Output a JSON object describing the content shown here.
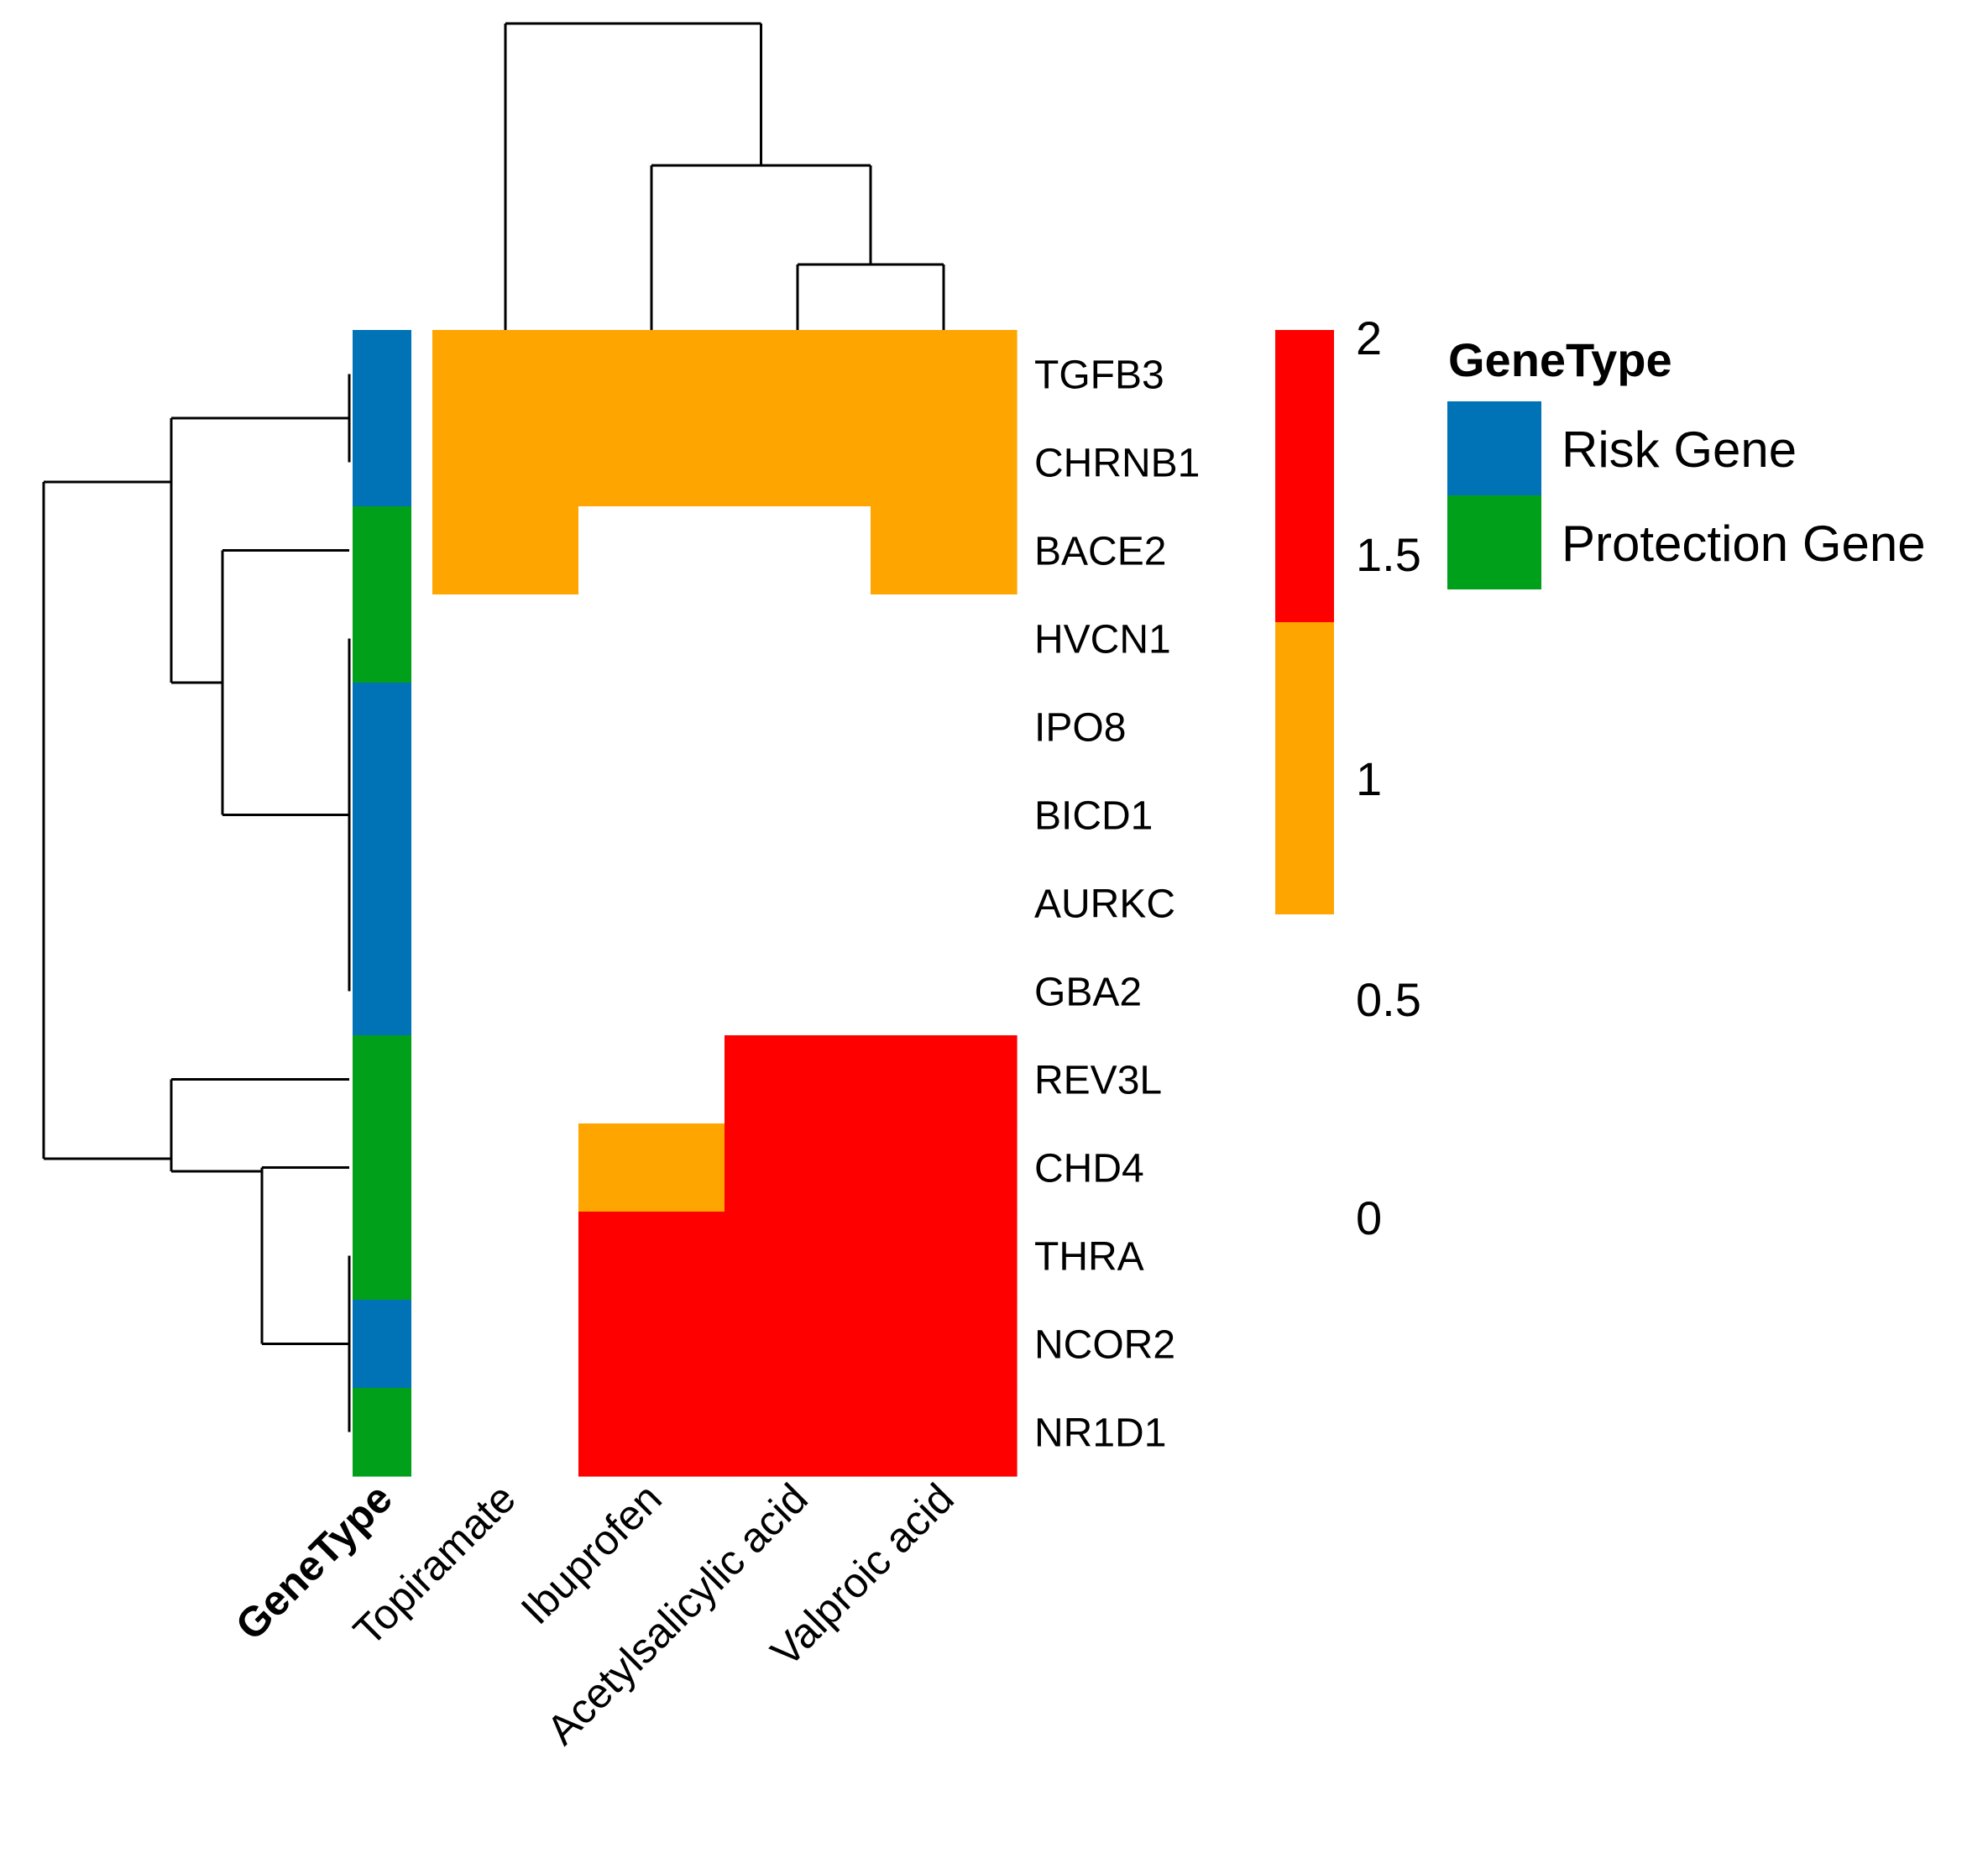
{
  "chart_data": {
    "type": "heatmap",
    "rows": [
      "TGFB3",
      "CHRNB1",
      "BACE2",
      "HVCN1",
      "IPO8",
      "BICD1",
      "AURKC",
      "GBA2",
      "REV3L",
      "CHD4",
      "THRA",
      "NCOR2",
      "NR1D1"
    ],
    "columns": [
      "Topiramate",
      "Ibuprofen",
      "Acetylsalicylic acid",
      "Valproic acid"
    ],
    "values": [
      [
        1,
        1,
        1,
        1
      ],
      [
        1,
        1,
        1,
        1
      ],
      [
        1,
        0,
        0,
        1
      ],
      [
        0,
        0,
        0,
        0
      ],
      [
        0,
        0,
        0,
        0
      ],
      [
        0,
        0,
        0,
        0
      ],
      [
        0,
        0,
        0,
        0
      ],
      [
        0,
        0,
        0,
        0
      ],
      [
        0,
        0,
        2,
        2
      ],
      [
        0,
        1,
        2,
        2
      ],
      [
        0,
        2,
        2,
        2
      ],
      [
        0,
        2,
        2,
        2
      ],
      [
        0,
        2,
        2,
        2
      ]
    ],
    "gene_type": [
      "Risk Gene",
      "Risk Gene",
      "Protection Gene",
      "Protection Gene",
      "Risk Gene",
      "Risk Gene",
      "Risk Gene",
      "Risk Gene",
      "Protection Gene",
      "Protection Gene",
      "Protection Gene",
      "Risk Gene",
      "Protection Gene"
    ],
    "annotation_title": "GeneType",
    "color_scale": {
      "ticks": [
        "2",
        "1.5",
        "1",
        "0.5",
        "0"
      ],
      "colors": {
        "0": "#ffffff",
        "1": "#ffa500",
        "2": "#ff0000"
      }
    },
    "legend": {
      "title": "GeneType",
      "items": [
        {
          "label": "Risk Gene",
          "color": "#0073b7"
        },
        {
          "label": "Protection Gene",
          "color": "#00a01a"
        }
      ]
    },
    "column_order_dendrogram": "((Topiramate),(Ibuprofen,(Acetylsalicylic acid,Valproic acid)))",
    "row_order_dendrogram": "(((TGFB3,CHRNB1),(BACE2,(HVCN1,IPO8,BICD1,AURKC,GBA2))),(REV3L,(CHD4,(THRA,NCOR2,NR1D1))))"
  }
}
